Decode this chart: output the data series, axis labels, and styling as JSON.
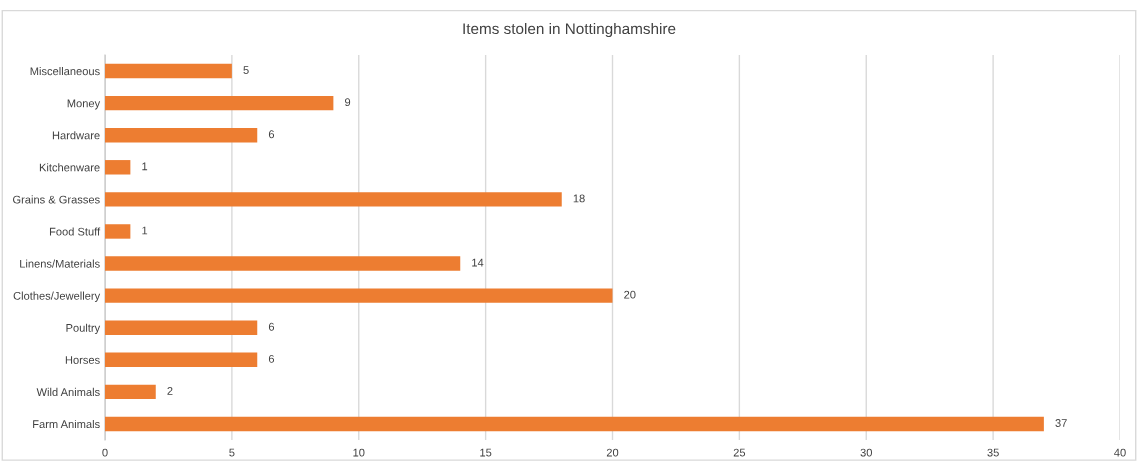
{
  "chart_data": {
    "type": "bar",
    "orientation": "horizontal",
    "title": "Items stolen in Nottinghamshire",
    "categories": [
      "Miscellaneous",
      "Money",
      "Hardware",
      "Kitchenware",
      "Grains & Grasses",
      "Food Stuff",
      "Linens/Materials",
      "Clothes/Jewellery",
      "Poultry",
      "Horses",
      "Wild Animals",
      "Farm Animals"
    ],
    "values": [
      5,
      9,
      6,
      1,
      18,
      1,
      14,
      20,
      6,
      6,
      2,
      37
    ],
    "color": "#ed7d31",
    "xlim": [
      0,
      40
    ],
    "xticks": [
      0,
      5,
      10,
      15,
      20,
      25,
      30,
      35,
      40
    ],
    "grid": "x",
    "data_labels": true
  }
}
